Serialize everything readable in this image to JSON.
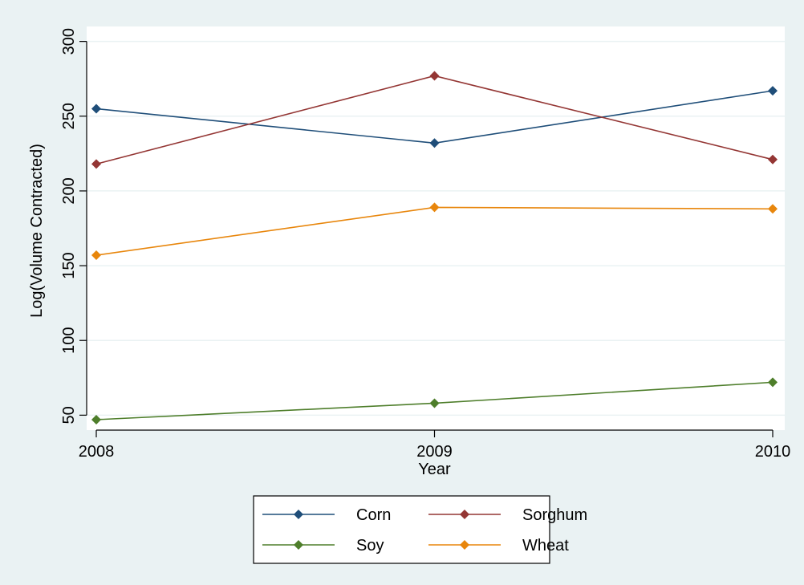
{
  "chart_data": {
    "type": "line",
    "x": [
      2008,
      2009,
      2010
    ],
    "xlabel": "Year",
    "ylabel": "Log(Volume Contracted)",
    "xlim": [
      2008,
      2010
    ],
    "ylim": [
      40,
      310
    ],
    "xticks": [
      2008,
      2009,
      2010
    ],
    "yticks": [
      50,
      100,
      150,
      200,
      250,
      300
    ],
    "grid": "horizontal",
    "legend_position": "bottom",
    "series": [
      {
        "name": "Corn",
        "color": "#1f4e79",
        "values": [
          255,
          232,
          267
        ]
      },
      {
        "name": "Sorghum",
        "color": "#943634",
        "values": [
          218,
          277,
          221
        ]
      },
      {
        "name": "Soy",
        "color": "#4e7e2b",
        "values": [
          47,
          58,
          72
        ]
      },
      {
        "name": "Wheat",
        "color": "#e8860c",
        "values": [
          157,
          189,
          188
        ]
      }
    ]
  },
  "colors": {
    "outer_background": "#eaf2f3",
    "plot_background": "#ffffff",
    "grid": "#eaf2f3"
  }
}
